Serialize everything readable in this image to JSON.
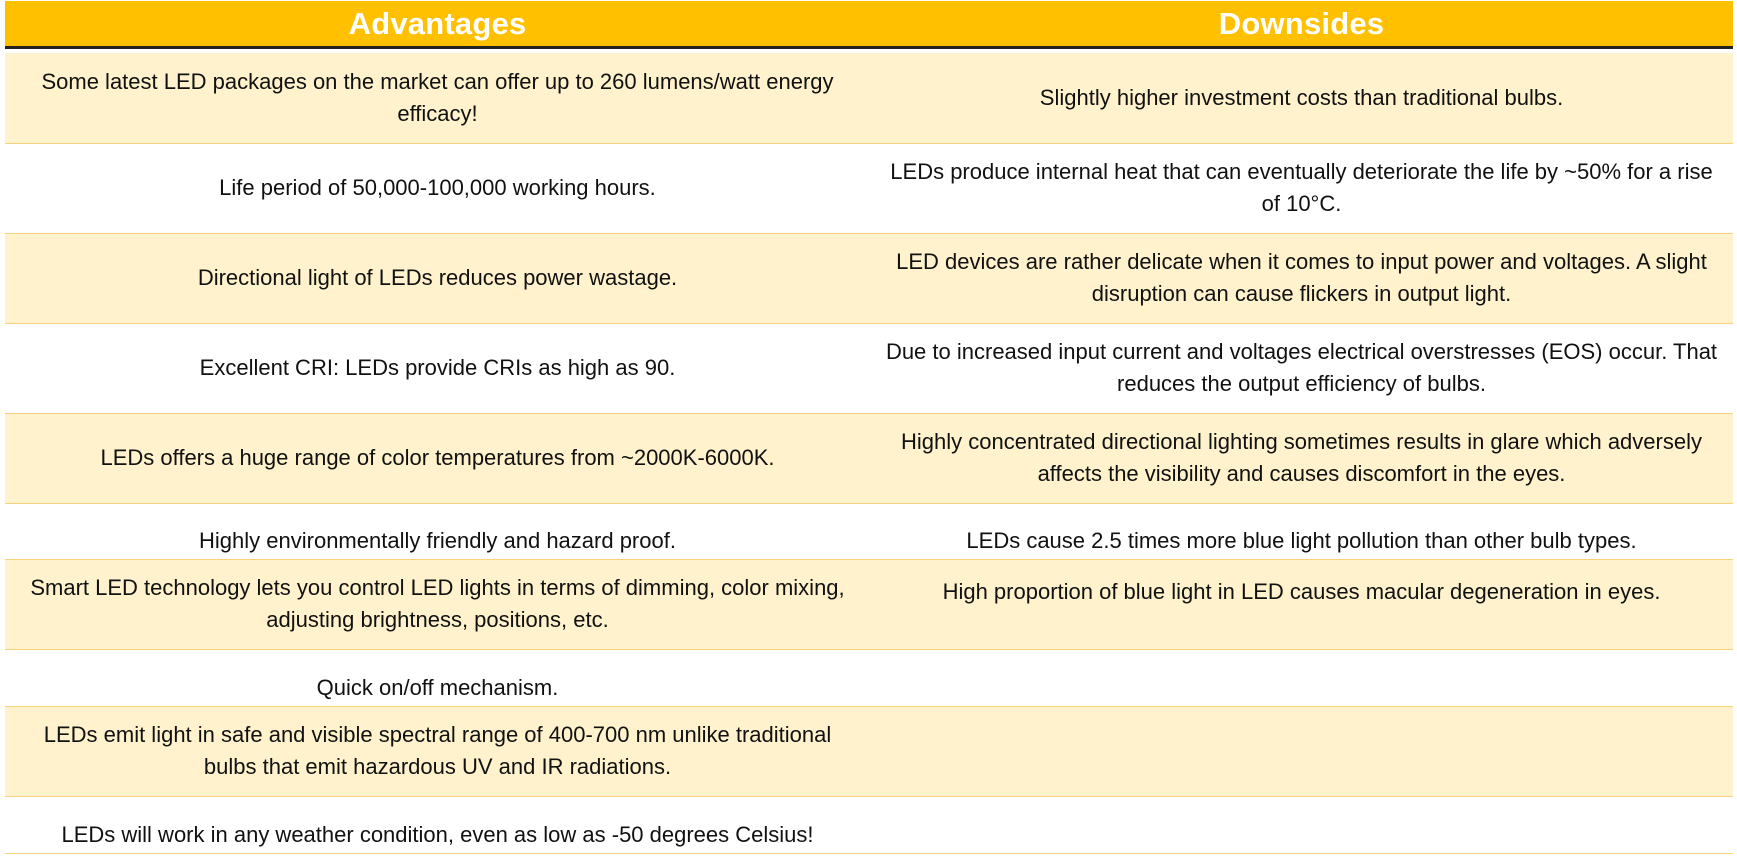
{
  "header": {
    "advantages": "Advantages",
    "downsides": "Downsides"
  },
  "rows": [
    {
      "advantage": "Some latest LED packages on the market can offer up to 260 lumens/watt energy efficacy!",
      "downside": "Slightly higher investment costs than traditional bulbs."
    },
    {
      "advantage": "Life period of 50,000-100,000 working hours.",
      "downside": "LEDs produce internal heat that can eventually deteriorate the life by ~50% for a rise of 10°C."
    },
    {
      "advantage": "Directional light of LEDs reduces power wastage.",
      "downside": "LED devices are rather delicate when it comes to input power and voltages. A slight disruption can cause flickers in output light."
    },
    {
      "advantage": "Excellent CRI: LEDs provide CRIs as high as 90.",
      "downside": "Due to increased input current and voltages electrical overstresses (EOS) occur. That reduces the output efficiency of bulbs."
    },
    {
      "advantage": "LEDs offers a huge range of color temperatures from ~2000K-6000K.",
      "downside": "Highly concentrated directional lighting sometimes results in glare which adversely affects the visibility and causes discomfort in the eyes."
    },
    {
      "advantage": "Highly environmentally friendly and hazard proof.",
      "downside": "LEDs cause 2.5 times more blue light pollution than other bulb types."
    },
    {
      "advantage": "Smart LED technology lets you control LED lights in terms of dimming, color mixing, adjusting brightness, positions, etc.",
      "downside": "High proportion of blue light in LED causes macular degeneration in eyes."
    },
    {
      "advantage": "Quick on/off mechanism.",
      "downside": ""
    },
    {
      "advantage": "LEDs emit light in safe and visible spectral range of 400-700 nm unlike traditional bulbs that emit hazardous UV and IR radiations.",
      "downside": ""
    },
    {
      "advantage": "LEDs will work in any weather condition, even as low as -50 degrees Celsius!",
      "downside": ""
    }
  ],
  "colors": {
    "header_bg": "#ffc000",
    "header_text": "#ffffff",
    "band_odd": "#fff2cc",
    "band_even": "#ffffff",
    "row_border": "#f6d27a"
  }
}
